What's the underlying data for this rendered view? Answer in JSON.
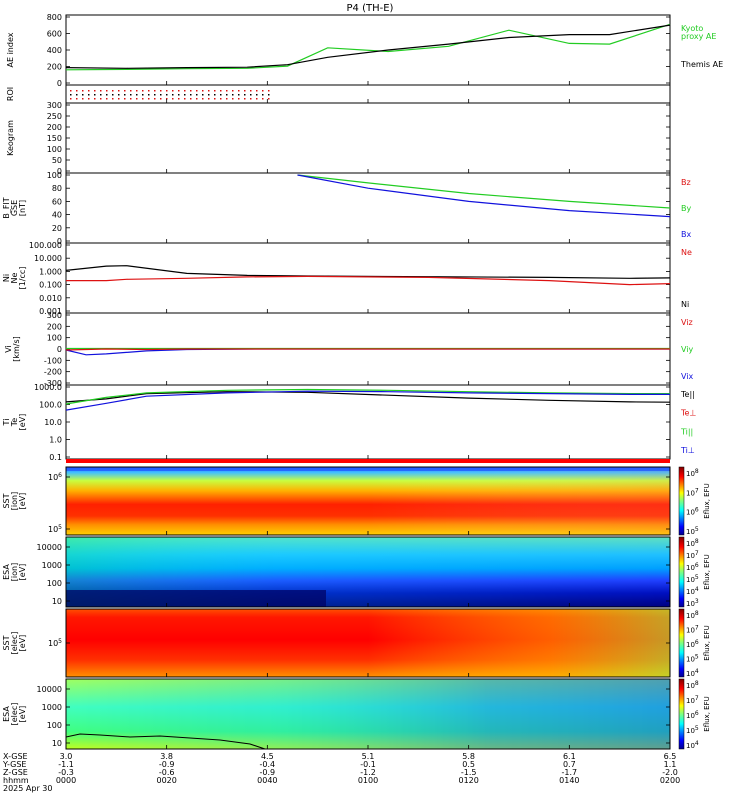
{
  "title": "P4 (TH-E)",
  "colors": {
    "green": "#22cc22",
    "black": "#000000",
    "red": "#dd1111",
    "blue": "#1111dd"
  },
  "chart_data": [
    {
      "id": "ae",
      "type": "line",
      "ylabel": "AE index",
      "yticks": [
        "800",
        "600",
        "400",
        "200",
        "0"
      ],
      "ylim": [
        -100,
        800
      ],
      "legend": [
        "Kyoto",
        "proxy AE",
        "Themis AE"
      ],
      "x_hours": [
        0,
        0.3,
        0.6,
        0.9,
        1.1,
        1.3,
        1.6,
        1.9,
        2.2,
        2.5,
        2.7,
        3.0
      ],
      "series": [
        {
          "name": "Kyoto proxy AE",
          "color": "green",
          "values": [
            80,
            85,
            95,
            100,
            130,
            380,
            330,
            400,
            620,
            440,
            430,
            700
          ]
        },
        {
          "name": "Themis AE",
          "color": "black",
          "values": [
            110,
            100,
            110,
            115,
            150,
            250,
            350,
            430,
            520,
            560,
            560,
            690
          ]
        }
      ]
    },
    {
      "id": "roi",
      "type": "scatter",
      "ylabel": "ROI",
      "note": "dotted red/black flags through 00:40"
    },
    {
      "id": "keogram",
      "type": "line",
      "ylabel": "Keogram",
      "yticks": [
        "300",
        "250",
        "200",
        "150",
        "100",
        "50",
        "0"
      ],
      "ylim": [
        0,
        300
      ]
    },
    {
      "id": "bfgm",
      "type": "line",
      "ylabel": "B_FIT\nGSE\n[nT]",
      "yticks": [
        "100",
        "80",
        "60",
        "40",
        "20",
        "0"
      ],
      "ylim": [
        0,
        100
      ],
      "legend": [
        "Bz",
        "By",
        "Bx"
      ],
      "x_hours": [
        1.15,
        1.5,
        2.0,
        2.5,
        3.0
      ],
      "series": [
        {
          "name": "By",
          "color": "green",
          "values": [
            100,
            88,
            72,
            60,
            50
          ]
        },
        {
          "name": "Bx",
          "color": "blue",
          "values": [
            100,
            80,
            60,
            46,
            37
          ]
        }
      ]
    },
    {
      "id": "density",
      "type": "line",
      "ylabel": "Ni\nNe\n[1/cc]",
      "yticks": [
        "100.000",
        "10.000",
        "1.000",
        "0.100",
        "0.010",
        "0.001"
      ],
      "log": true,
      "ylim": [
        0.001,
        100
      ],
      "legend": [
        "Ne",
        "Ni"
      ],
      "x_hours": [
        0,
        0.2,
        0.3,
        0.6,
        0.9,
        1.2,
        1.8,
        2.4,
        2.8,
        3.0
      ],
      "series": [
        {
          "name": "Ni",
          "color": "black",
          "values": [
            1.2,
            2.5,
            2.7,
            0.7,
            0.5,
            0.45,
            0.4,
            0.35,
            0.3,
            0.32
          ]
        },
        {
          "name": "Ne",
          "color": "red",
          "values": [
            0.2,
            0.2,
            0.25,
            0.3,
            0.38,
            0.42,
            0.35,
            0.2,
            0.1,
            0.12
          ]
        }
      ]
    },
    {
      "id": "velocity",
      "type": "line",
      "ylabel": "Vi\n[km/s]",
      "yticks": [
        "300",
        "200",
        "100",
        "0",
        "-100",
        "-200",
        "-300"
      ],
      "ylim": [
        -350,
        350
      ],
      "legend": [
        "Viz",
        "Viy",
        "Vix"
      ],
      "x_hours": [
        0,
        0.1,
        0.2,
        0.4,
        0.6,
        1.0,
        2.0,
        3.0
      ],
      "series": [
        {
          "name": "Vix",
          "color": "blue",
          "values": [
            -10,
            -60,
            -50,
            -20,
            -5,
            0,
            0,
            0
          ]
        },
        {
          "name": "Viy",
          "color": "green",
          "values": [
            5,
            5,
            5,
            5,
            5,
            5,
            5,
            5
          ]
        },
        {
          "name": "Viz",
          "color": "red",
          "values": [
            -10,
            -5,
            0,
            -5,
            0,
            0,
            0,
            0
          ]
        }
      ]
    },
    {
      "id": "temperature",
      "type": "line",
      "ylabel": "Ti\nTe\n[eV]",
      "yticks": [
        "1000.0",
        "100.0",
        "10.0",
        "1.0",
        "0.1"
      ],
      "log": true,
      "ylim": [
        0.05,
        2500
      ],
      "legend": [
        "Te||",
        "Te⊥",
        "Ti||",
        "Ti⊥"
      ],
      "x_hours": [
        0,
        0.2,
        0.4,
        0.8,
        1.2,
        1.6,
        2.0,
        2.4,
        2.8,
        3.0
      ],
      "series": [
        {
          "name": "Te||",
          "color": "black",
          "values": [
            250,
            400,
            900,
            1200,
            1100,
            700,
            450,
            320,
            250,
            240
          ]
        },
        {
          "name": "Ti||",
          "color": "green",
          "values": [
            180,
            500,
            1000,
            1500,
            1700,
            1500,
            1200,
            1000,
            900,
            900
          ]
        },
        {
          "name": "Ti⊥",
          "color": "blue",
          "values": [
            70,
            200,
            600,
            1000,
            1300,
            1200,
            1000,
            900,
            800,
            800
          ]
        }
      ]
    },
    {
      "id": "sst-ion",
      "type": "heatmap",
      "ylabel": "SST\n[ion]\n[eV]",
      "yticks": [
        "10^6",
        "10^5"
      ],
      "cbar_label": "Eflux, EFU",
      "cbar_ticks": [
        "10^8",
        "10^7",
        "10^6",
        "10^5"
      ]
    },
    {
      "id": "esa-ion",
      "type": "heatmap",
      "ylabel": "ESA\n[ion]\n[eV]",
      "yticks": [
        "10000",
        "1000",
        "100",
        "10"
      ],
      "cbar_label": "Eflux, EFU",
      "cbar_ticks": [
        "10^8",
        "10^7",
        "10^6",
        "10^5",
        "10^4",
        "10^3"
      ]
    },
    {
      "id": "sst-elec",
      "type": "heatmap",
      "ylabel": "SST\n[elec]\n[eV]",
      "yticks": [
        "10^5"
      ],
      "cbar_label": "Eflux, EFU",
      "cbar_ticks": [
        "10^8",
        "10^7",
        "10^6",
        "10^5",
        "10^4"
      ]
    },
    {
      "id": "esa-elec",
      "type": "heatmap",
      "ylabel": "ESA\n[elec]\n[eV]",
      "yticks": [
        "10000",
        "1000",
        "100",
        "10"
      ],
      "cbar_label": "Eflux, EFU",
      "cbar_ticks": [
        "10^8",
        "10^7",
        "10^6",
        "10^5",
        "10^4"
      ]
    }
  ],
  "x_axis": {
    "row_labels": [
      "X-GSE",
      "Y-GSE",
      "Z-GSE",
      "hhmm",
      "2025 Apr 30"
    ],
    "columns": [
      {
        "x": "3.0",
        "y": "-1.1",
        "z": "-0.3",
        "t": "0000"
      },
      {
        "x": "3.8",
        "y": "-0.9",
        "z": "-0.6",
        "t": "0020"
      },
      {
        "x": "4.5",
        "y": "-0.4",
        "z": "-0.9",
        "t": "0040"
      },
      {
        "x": "5.1",
        "y": "-0.1",
        "z": "-1.2",
        "t": "0100"
      },
      {
        "x": "5.8",
        "y": "0.5",
        "z": "-1.5",
        "t": "0120"
      },
      {
        "x": "6.1",
        "y": "0.7",
        "z": "-1.7",
        "t": "0140"
      },
      {
        "x": "6.5",
        "y": "1.1",
        "z": "-2.0",
        "t": "0200"
      }
    ]
  }
}
